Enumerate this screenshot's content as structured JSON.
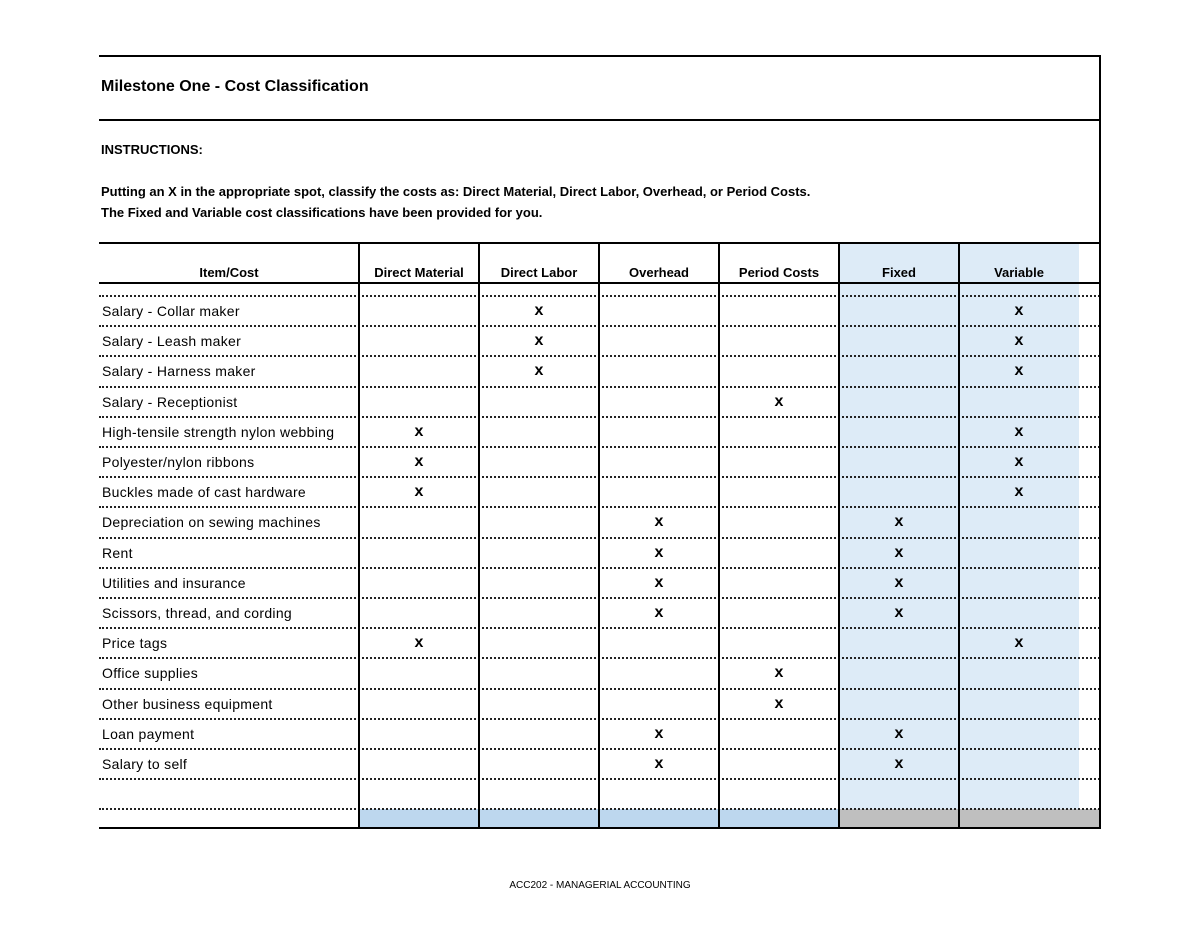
{
  "title": "Milestone One - Cost Classification",
  "instructions": {
    "heading": "INSTRUCTIONS:",
    "line1": "Putting an X in the appropriate spot, classify the costs as:  Direct Material, Direct Labor, Overhead, or Period Costs.",
    "line2": "The Fixed and Variable cost classifications have been provided for you."
  },
  "columns": [
    "Item/Cost",
    "Direct Material",
    "Direct Labor",
    "Overhead",
    "Period Costs",
    "Fixed",
    "Variable"
  ],
  "mark": "x",
  "colors": {
    "shaded_column": "#ddebf7",
    "footer_blue": "#bdd7ee",
    "footer_gray": "#bfbfbf"
  },
  "rows": [
    {
      "item": "Salary - Collar maker",
      "marks": [
        0,
        1,
        0,
        0,
        0,
        1
      ]
    },
    {
      "item": "Salary - Leash maker",
      "marks": [
        0,
        1,
        0,
        0,
        0,
        1
      ]
    },
    {
      "item": "Salary - Harness maker",
      "marks": [
        0,
        1,
        0,
        0,
        0,
        1
      ]
    },
    {
      "item": "Salary - Receptionist",
      "marks": [
        0,
        0,
        0,
        1,
        0,
        0
      ]
    },
    {
      "item": "High-tensile strength nylon webbing",
      "marks": [
        1,
        0,
        0,
        0,
        0,
        1
      ]
    },
    {
      "item": "Polyester/nylon ribbons",
      "marks": [
        1,
        0,
        0,
        0,
        0,
        1
      ]
    },
    {
      "item": "Buckles made of cast hardware",
      "marks": [
        1,
        0,
        0,
        0,
        0,
        1
      ]
    },
    {
      "item": "Depreciation on sewing machines",
      "marks": [
        0,
        0,
        1,
        0,
        1,
        0
      ]
    },
    {
      "item": "Rent",
      "marks": [
        0,
        0,
        1,
        0,
        1,
        0
      ]
    },
    {
      "item": "Utilities and insurance",
      "marks": [
        0,
        0,
        1,
        0,
        1,
        0
      ]
    },
    {
      "item": "Scissors, thread, and cording",
      "marks": [
        0,
        0,
        1,
        0,
        1,
        0
      ]
    },
    {
      "item": "Price tags",
      "marks": [
        1,
        0,
        0,
        0,
        0,
        1
      ]
    },
    {
      "item": "Office supplies",
      "marks": [
        0,
        0,
        0,
        1,
        0,
        0
      ]
    },
    {
      "item": "Other business equipment",
      "marks": [
        0,
        0,
        0,
        1,
        0,
        0
      ]
    },
    {
      "item": "Loan payment",
      "marks": [
        0,
        0,
        1,
        0,
        1,
        0
      ]
    },
    {
      "item": "Salary to self",
      "marks": [
        0,
        0,
        1,
        0,
        1,
        0
      ]
    },
    {
      "item": "",
      "marks": [
        0,
        0,
        0,
        0,
        0,
        0
      ]
    }
  ],
  "footer": "ACC202 - MANAGERIAL ACCOUNTING"
}
